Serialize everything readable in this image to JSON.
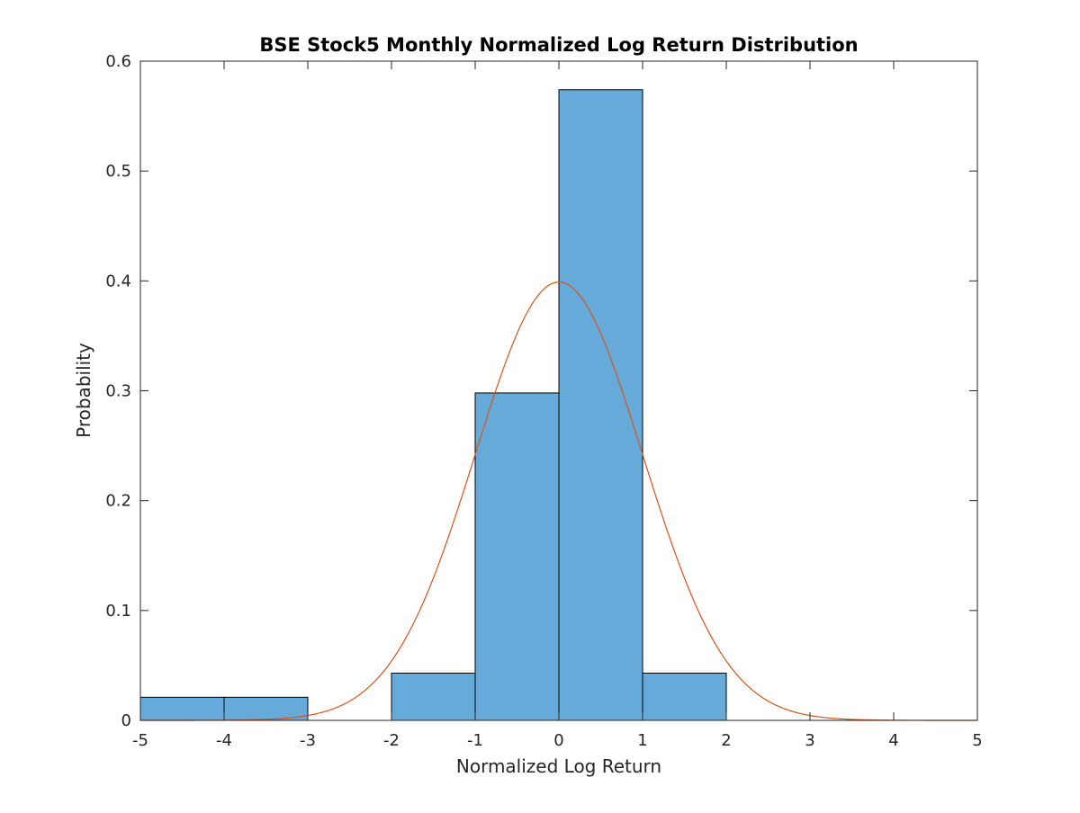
{
  "chart_data": {
    "type": "bar",
    "title": "BSE Stock5 Monthly Normalized Log Return Distribution",
    "xlabel": "Normalized Log Return",
    "ylabel": "Probability",
    "xlim": [
      -5,
      5
    ],
    "ylim": [
      0,
      0.6
    ],
    "xticks": [
      -5,
      -4,
      -3,
      -2,
      -1,
      0,
      1,
      2,
      3,
      4,
      5
    ],
    "xtick_labels": [
      "-5",
      "-4",
      "-3",
      "-2",
      "-1",
      "0",
      "1",
      "2",
      "3",
      "4",
      "5"
    ],
    "yticks": [
      0,
      0.1,
      0.2,
      0.3,
      0.4,
      0.5,
      0.6
    ],
    "ytick_labels": [
      "0",
      "0.1",
      "0.2",
      "0.3",
      "0.4",
      "0.5",
      "0.6"
    ],
    "grid": false,
    "bins": [
      {
        "x0": -5,
        "x1": -4,
        "value": 0.021
      },
      {
        "x0": -4,
        "x1": -3,
        "value": 0.021
      },
      {
        "x0": -2,
        "x1": -1,
        "value": 0.043
      },
      {
        "x0": -1,
        "x1": 0,
        "value": 0.298
      },
      {
        "x0": 0,
        "x1": 1,
        "value": 0.574
      },
      {
        "x0": 1,
        "x1": 2,
        "value": 0.043
      }
    ],
    "overlay": {
      "type": "line",
      "curve": "standard-normal-pdf",
      "mean": 0,
      "std": 1,
      "color": "#D95319"
    },
    "colors": {
      "bar_fill": "#66AADA",
      "bar_edge": "#000000",
      "axes": "#262626"
    }
  }
}
